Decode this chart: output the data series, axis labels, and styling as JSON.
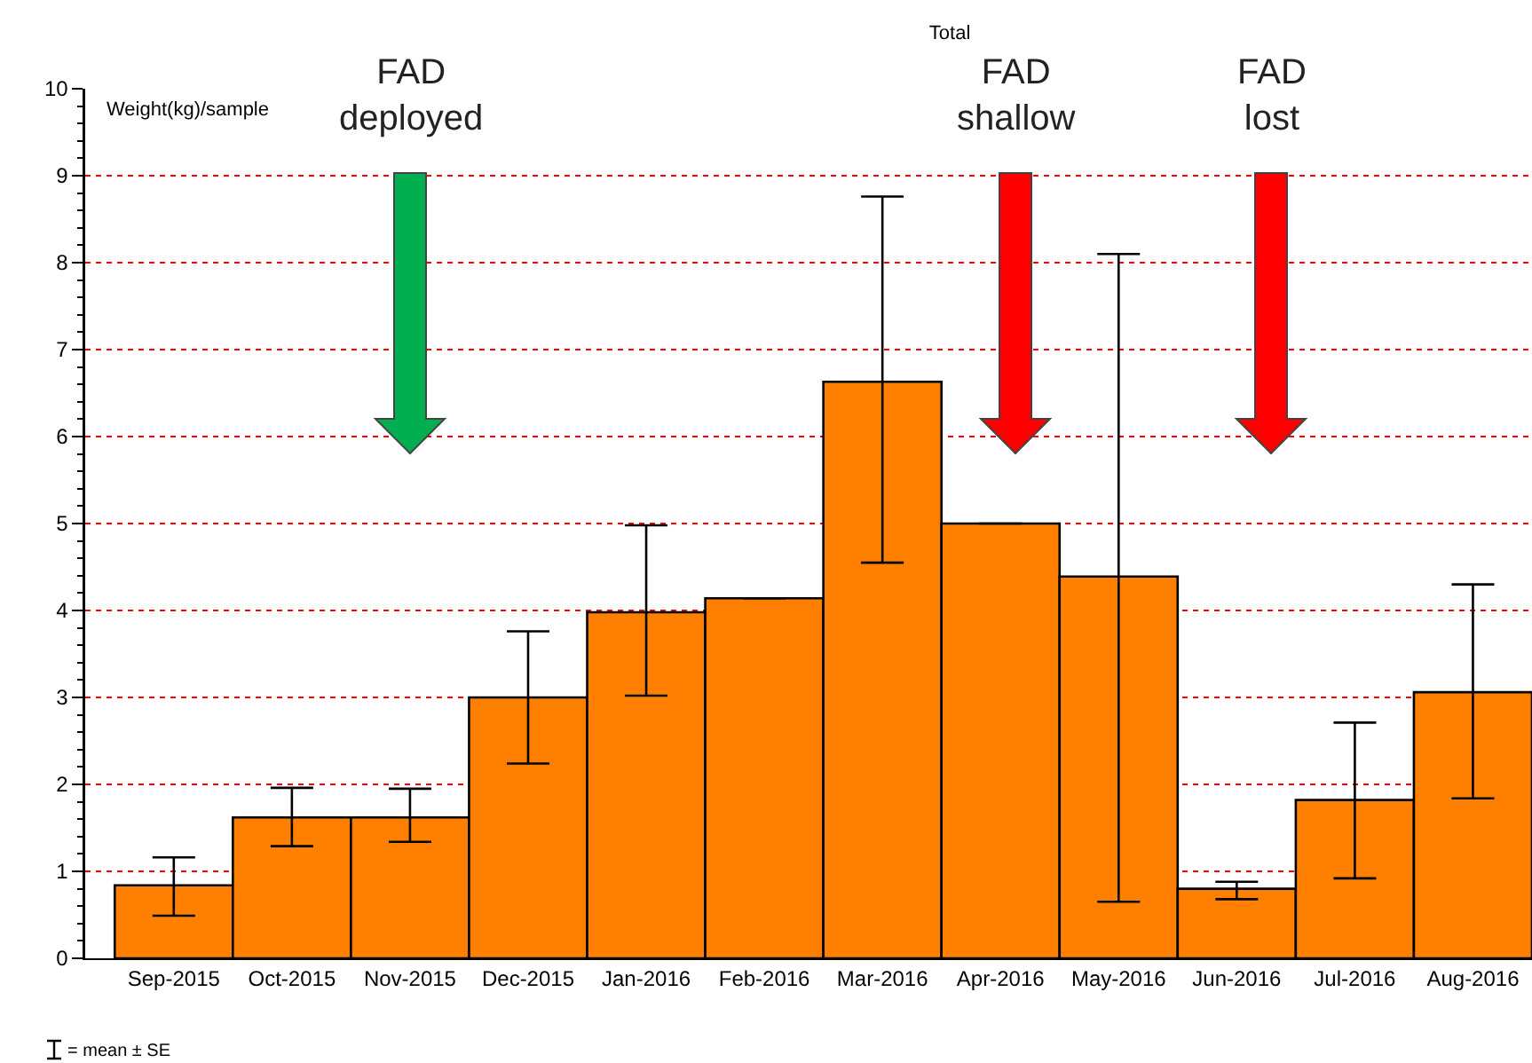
{
  "chart_data": {
    "type": "bar",
    "title": "Total",
    "ylabel": "Weight(kg)/sample",
    "categories": [
      "Sep-2015",
      "Oct-2015",
      "Nov-2015",
      "Dec-2015",
      "Jan-2016",
      "Feb-2016",
      "Mar-2016",
      "Apr-2016",
      "May-2016",
      "Jun-2016",
      "Jul-2016",
      "Aug-2016"
    ],
    "values": [
      0.84,
      1.62,
      1.62,
      3.0,
      3.98,
      4.14,
      6.63,
      5.0,
      4.39,
      0.8,
      1.82,
      3.06
    ],
    "errors": [
      [
        0.49,
        1.16
      ],
      [
        1.29,
        1.96
      ],
      [
        1.34,
        1.95
      ],
      [
        2.24,
        3.76
      ],
      [
        3.02,
        4.98
      ],
      null,
      [
        4.55,
        8.76
      ],
      null,
      [
        0.65,
        8.1
      ],
      [
        0.68,
        0.88
      ],
      [
        0.92,
        2.71
      ],
      [
        1.84,
        4.3
      ]
    ],
    "color": "#ff8000",
    "ylim": [
      0,
      10
    ],
    "yticks": [
      0,
      1,
      2,
      3,
      4,
      5,
      6,
      7,
      8,
      9,
      10
    ],
    "grid": "y",
    "annotations": [
      "FAD\ndeployed",
      "FAD\nshallow",
      "FAD\nlost",
      "= mean ± SE"
    ]
  }
}
